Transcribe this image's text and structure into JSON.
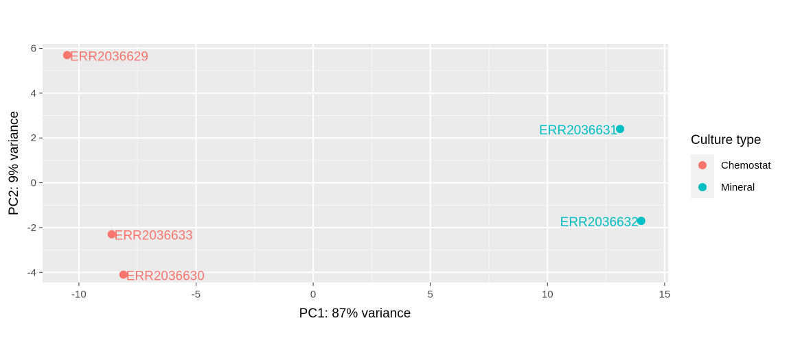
{
  "chart_data": {
    "type": "scatter",
    "xlabel": "PC1: 87% variance",
    "ylabel": "PC2: 9% variance",
    "xlim": [
      -11.55,
      15.15
    ],
    "ylim": [
      -4.45,
      6.2
    ],
    "xticks": [
      -10,
      -5,
      0,
      5,
      10,
      15
    ],
    "yticks": [
      -4,
      -2,
      0,
      2,
      4,
      6
    ],
    "xtick_labels": [
      "-10",
      "-5",
      "0",
      "5",
      "10",
      "15"
    ],
    "ytick_labels": [
      "-4",
      "-2",
      "0",
      "2",
      "4",
      "6"
    ],
    "grid": true,
    "legend": {
      "title": "Culture type",
      "placement": "right",
      "entries": [
        {
          "label": "Chemostat",
          "color": "#F8766D"
        },
        {
          "label": "Mineral",
          "color": "#00BFC4"
        }
      ]
    },
    "series": [
      {
        "name": "Chemostat",
        "color": "#F8766D",
        "points": [
          {
            "x": -10.5,
            "y": 5.7,
            "label": "ERR2036629",
            "anchor": "start"
          },
          {
            "x": -8.6,
            "y": -2.3,
            "label": "ERR2036633",
            "anchor": "start"
          },
          {
            "x": -8.1,
            "y": -4.1,
            "label": "ERR2036630",
            "anchor": "start"
          }
        ]
      },
      {
        "name": "Mineral",
        "color": "#00BFC4",
        "points": [
          {
            "x": 13.1,
            "y": 2.4,
            "label": "ERR2036631",
            "anchor": "end"
          },
          {
            "x": 14.0,
            "y": -1.7,
            "label": "ERR2036632",
            "anchor": "end"
          }
        ]
      }
    ]
  }
}
